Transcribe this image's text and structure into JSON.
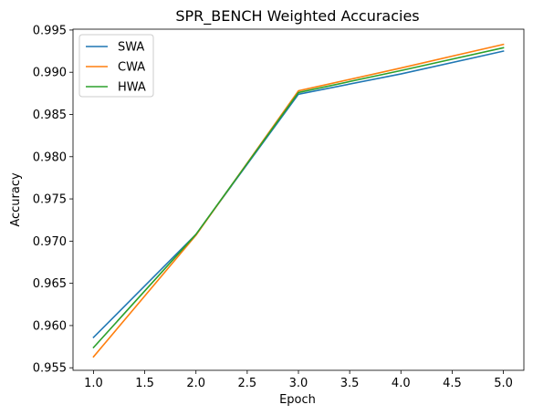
{
  "chart_data": {
    "type": "line",
    "title": "SPR_BENCH Weighted Accuracies",
    "xlabel": "Epoch",
    "ylabel": "Accuracy",
    "x": [
      1,
      2,
      3,
      4,
      5
    ],
    "xlim": [
      0.8,
      5.2
    ],
    "ylim": [
      0.9547,
      0.9951
    ],
    "xticks": [
      1.0,
      1.5,
      2.0,
      2.5,
      3.0,
      3.5,
      4.0,
      4.5,
      5.0
    ],
    "xtick_labels": [
      "1.0",
      "1.5",
      "2.0",
      "2.5",
      "3.0",
      "3.5",
      "4.0",
      "4.5",
      "5.0"
    ],
    "yticks": [
      0.955,
      0.96,
      0.965,
      0.97,
      0.975,
      0.98,
      0.985,
      0.99,
      0.995
    ],
    "ytick_labels": [
      "0.955",
      "0.960",
      "0.965",
      "0.970",
      "0.975",
      "0.980",
      "0.985",
      "0.990",
      "0.995"
    ],
    "grid": false,
    "legend_position": "top-left",
    "series": [
      {
        "name": "SWA",
        "color": "#1f77b4",
        "values": [
          0.9586,
          0.9708,
          0.9874,
          0.9898,
          0.9925
        ]
      },
      {
        "name": "CWA",
        "color": "#ff7f0e",
        "values": [
          0.9563,
          0.9707,
          0.9878,
          0.9905,
          0.9933
        ]
      },
      {
        "name": "HWA",
        "color": "#2ca02c",
        "values": [
          0.9574,
          0.9708,
          0.9876,
          0.9902,
          0.9929
        ]
      }
    ]
  }
}
